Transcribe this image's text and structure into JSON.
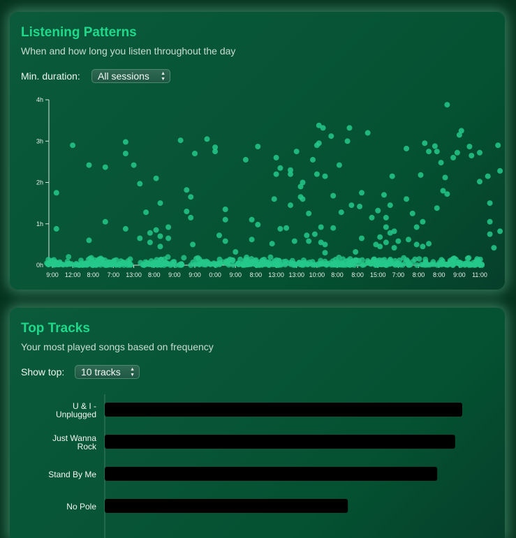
{
  "patterns": {
    "title": "Listening Patterns",
    "subtitle": "When and how long you listen throughout the day",
    "filter_label": "Min. duration:",
    "filter_value": "All sessions",
    "colors": {
      "accent": "#1ed98a",
      "dot": "#24c98a"
    }
  },
  "top_tracks": {
    "title": "Top Tracks",
    "subtitle": "Your most played songs based on frequency",
    "filter_label": "Show top:",
    "filter_value": "10 tracks",
    "colors": {
      "bar": "#000000"
    }
  },
  "chart_data": [
    {
      "type": "scatter",
      "title": "",
      "xlabel": "",
      "ylabel": "",
      "x_tick_labels": [
        "9:00",
        "12:00",
        "8:00",
        "7:00",
        "13:00",
        "8:00",
        "9:00",
        "9:00",
        "0:00",
        "9:00",
        "8:00",
        "13:00",
        "13:00",
        "10:00",
        "8:00",
        "8:00",
        "15:00",
        "7:00",
        "8:00",
        "8:00",
        "9:00",
        "11:00"
      ],
      "y_tick_labels": [
        "0h",
        "1h",
        "2h",
        "3h",
        "4h"
      ],
      "ylim": [
        0,
        4
      ],
      "y_unit": "hours",
      "grid": false,
      "note": "x is session index across the listening history; y is session duration in hours",
      "points": [
        [
          0.2,
          1.75
        ],
        [
          0.2,
          0.88
        ],
        [
          1.0,
          2.9
        ],
        [
          1.8,
          2.42
        ],
        [
          1.8,
          0.6
        ],
        [
          2.6,
          2.37
        ],
        [
          2.6,
          1.05
        ],
        [
          3.6,
          2.7
        ],
        [
          3.6,
          2.98
        ],
        [
          3.6,
          0.88
        ],
        [
          4.0,
          2.42
        ],
        [
          4.3,
          1.97
        ],
        [
          4.3,
          0.65
        ],
        [
          4.6,
          1.28
        ],
        [
          4.8,
          0.78
        ],
        [
          4.8,
          0.55
        ],
        [
          5.1,
          2.1
        ],
        [
          5.1,
          0.85
        ],
        [
          5.3,
          1.5
        ],
        [
          5.3,
          0.7
        ],
        [
          5.3,
          0.45
        ],
        [
          5.7,
          0.92
        ],
        [
          5.7,
          0.65
        ],
        [
          6.3,
          3.02
        ],
        [
          6.6,
          1.82
        ],
        [
          6.6,
          1.3
        ],
        [
          6.8,
          1.65
        ],
        [
          6.8,
          1.15
        ],
        [
          6.9,
          0.5
        ],
        [
          7.0,
          2.7
        ],
        [
          7.6,
          3.05
        ],
        [
          8.0,
          2.75
        ],
        [
          8.0,
          2.85
        ],
        [
          8.2,
          0.72
        ],
        [
          8.5,
          1.35
        ],
        [
          8.5,
          1.1
        ],
        [
          8.5,
          0.58
        ],
        [
          9.0,
          0.32
        ],
        [
          9.5,
          2.55
        ],
        [
          9.8,
          1.1
        ],
        [
          9.8,
          0.62
        ],
        [
          10.1,
          2.87
        ],
        [
          10.1,
          0.98
        ],
        [
          10.8,
          0.52
        ],
        [
          10.9,
          1.6
        ],
        [
          11.0,
          2.6
        ],
        [
          11.0,
          2.2
        ],
        [
          11.2,
          2.35
        ],
        [
          11.2,
          0.88
        ],
        [
          11.5,
          0.9
        ],
        [
          11.7,
          1.45
        ],
        [
          11.7,
          2.3
        ],
        [
          11.7,
          2.2
        ],
        [
          11.9,
          0.58
        ],
        [
          12.0,
          2.75
        ],
        [
          12.2,
          1.9
        ],
        [
          12.2,
          1.65
        ],
        [
          12.3,
          2.0
        ],
        [
          12.3,
          1.6
        ],
        [
          12.5,
          0.72
        ],
        [
          12.6,
          0.58
        ],
        [
          12.6,
          1.25
        ],
        [
          12.8,
          2.55
        ],
        [
          12.9,
          0.75
        ],
        [
          13.0,
          2.9
        ],
        [
          13.0,
          2.2
        ],
        [
          13.1,
          3.38
        ],
        [
          13.1,
          2.95
        ],
        [
          13.2,
          0.92
        ],
        [
          13.2,
          0.55
        ],
        [
          13.3,
          3.32
        ],
        [
          13.4,
          2.15
        ],
        [
          13.4,
          0.5
        ],
        [
          13.4,
          0.3
        ],
        [
          13.7,
          3.12
        ],
        [
          13.8,
          1.68
        ],
        [
          13.8,
          0.9
        ],
        [
          14.1,
          2.42
        ],
        [
          14.2,
          1.28
        ],
        [
          14.5,
          3.0
        ],
        [
          14.6,
          3.32
        ],
        [
          14.7,
          1.45
        ],
        [
          14.9,
          0.32
        ],
        [
          15.1,
          1.42
        ],
        [
          15.2,
          1.75
        ],
        [
          15.2,
          0.65
        ],
        [
          15.5,
          3.2
        ],
        [
          15.7,
          1.15
        ],
        [
          15.9,
          0.5
        ],
        [
          16.0,
          1.32
        ],
        [
          16.1,
          0.68
        ],
        [
          16.1,
          0.45
        ],
        [
          16.3,
          1.7
        ],
        [
          16.4,
          1.15
        ],
        [
          16.4,
          0.92
        ],
        [
          16.4,
          0.55
        ],
        [
          16.6,
          1.45
        ],
        [
          16.6,
          0.78
        ],
        [
          16.7,
          2.15
        ],
        [
          16.8,
          0.82
        ],
        [
          16.8,
          0.42
        ],
        [
          17.0,
          0.58
        ],
        [
          17.4,
          1.6
        ],
        [
          17.4,
          2.82
        ],
        [
          17.5,
          0.62
        ],
        [
          17.7,
          1.25
        ],
        [
          17.9,
          0.92
        ],
        [
          17.9,
          0.5
        ],
        [
          18.1,
          2.18
        ],
        [
          18.2,
          1.05
        ],
        [
          18.2,
          0.45
        ],
        [
          18.3,
          2.95
        ],
        [
          18.5,
          2.75
        ],
        [
          18.5,
          0.52
        ],
        [
          18.8,
          2.88
        ],
        [
          18.9,
          2.75
        ],
        [
          18.9,
          1.38
        ],
        [
          19.1,
          2.48
        ],
        [
          19.2,
          1.8
        ],
        [
          19.3,
          2.12
        ],
        [
          19.4,
          3.88
        ],
        [
          19.4,
          1.72
        ],
        [
          19.7,
          2.6
        ],
        [
          19.9,
          2.72
        ],
        [
          20.0,
          3.15
        ],
        [
          20.1,
          3.25
        ],
        [
          20.5,
          2.87
        ],
        [
          20.6,
          2.65
        ],
        [
          21.0,
          2.72
        ],
        [
          21.0,
          2.02
        ],
        [
          21.4,
          2.15
        ],
        [
          21.5,
          1.5
        ],
        [
          21.5,
          1.05
        ],
        [
          21.5,
          0.75
        ],
        [
          21.7,
          0.42
        ],
        [
          21.9,
          2.9
        ],
        [
          22.0,
          2.28
        ],
        [
          22.0,
          0.82
        ]
      ],
      "baseline_cluster": "dense sessions under 0.25h across the full range"
    },
    {
      "type": "bar",
      "orientation": "horizontal",
      "title": "",
      "xlabel": "",
      "ylabel": "",
      "categories": [
        [
          "U & I -",
          "Unplugged"
        ],
        [
          "Just Wanna",
          "Rock"
        ],
        [
          "Stand By Me"
        ],
        [
          "No Pole"
        ]
      ],
      "values": [
        100,
        98,
        93,
        68
      ],
      "xlim": [
        0,
        100
      ],
      "value_unit": "relative play frequency (no axis shown)"
    }
  ]
}
